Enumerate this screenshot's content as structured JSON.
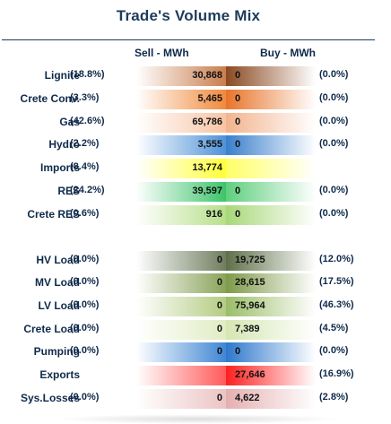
{
  "chart_data": {
    "type": "table",
    "title": "Trade's Volume Mix",
    "columns": [
      "Sell - MWh",
      "Buy - MWh"
    ],
    "rows": [
      {
        "label": "Lignite",
        "sell_pct": "(18.8%)",
        "sell": "30,868",
        "buy": "0",
        "buy_pct": "(0.0%)",
        "sell_color": "#c97e4e",
        "buy_color": "#8a4a22"
      },
      {
        "label": "Crete Conv.",
        "sell_pct": "(3.3%)",
        "sell": "5,465",
        "buy": "0",
        "buy_pct": "(0.0%)",
        "sell_color": "#f08a3c",
        "buy_color": "#e8742a"
      },
      {
        "label": "Gas",
        "sell_pct": "(42.6%)",
        "sell": "69,786",
        "buy": "0",
        "buy_pct": "(0.0%)",
        "sell_color": "#f7c4a4",
        "buy_color": "#f2b48e"
      },
      {
        "label": "Hydro",
        "sell_pct": "(2.2%)",
        "sell": "3,555",
        "buy": "0",
        "buy_pct": "(0.0%)",
        "sell_color": "#4e92d8",
        "buy_color": "#3a7fcc"
      },
      {
        "label": "Imports",
        "sell_pct": "(8.4%)",
        "sell": "13,774",
        "buy": "",
        "buy_pct": "",
        "sell_color": "#ffff3a",
        "buy_color": "#ffff66"
      },
      {
        "label": "RES",
        "sell_pct": "(24.2%)",
        "sell": "39,597",
        "buy": "0",
        "buy_pct": "(0.0%)",
        "sell_color": "#3cc46a",
        "buy_color": "#5fcf7e"
      },
      {
        "label": "Crete RES",
        "sell_pct": "(0.6%)",
        "sell": "916",
        "buy": "0",
        "buy_pct": "(0.0%)",
        "sell_color": "#b7df8a",
        "buy_color": "#a8d879"
      },
      {
        "label": "HV Load",
        "sell_pct": "(0.0%)",
        "sell": "0",
        "buy": "19,725",
        "buy_pct": "(12.0%)",
        "sell_color": "#6f7d5e",
        "buy_color": "#5e6f48"
      },
      {
        "label": "MV Load",
        "sell_pct": "(0.0%)",
        "sell": "0",
        "buy": "28,615",
        "buy_pct": "(17.5%)",
        "sell_color": "#8aa35a",
        "buy_color": "#7d9a48"
      },
      {
        "label": "LV Load",
        "sell_pct": "(0.0%)",
        "sell": "0",
        "buy": "75,964",
        "buy_pct": "(46.3%)",
        "sell_color": "#b4cc82",
        "buy_color": "#9bbd68"
      },
      {
        "label": "Crete Load",
        "sell_pct": "(0.0%)",
        "sell": "0",
        "buy": "7,389",
        "buy_pct": "(4.5%)",
        "sell_color": "#e1ecc4",
        "buy_color": "#d5e6b2"
      },
      {
        "label": "Pumping",
        "sell_pct": "(0.0%)",
        "sell": "0",
        "buy": "0",
        "buy_pct": "(0.0%)",
        "sell_color": "#3f86d4",
        "buy_color": "#2e78cc"
      },
      {
        "label": "Exports",
        "sell_pct": "",
        "sell": "",
        "buy": "27,646",
        "buy_pct": "(16.9%)",
        "sell_color": "#ff5a5a",
        "buy_color": "#ff1f1f"
      },
      {
        "label": "Sys.Losses",
        "sell_pct": "(0.0%)",
        "sell": "0",
        "buy": "4,622",
        "buy_pct": "(2.8%)",
        "sell_color": "#ecc4c4",
        "buy_color": "#e4b0b0"
      }
    ]
  }
}
